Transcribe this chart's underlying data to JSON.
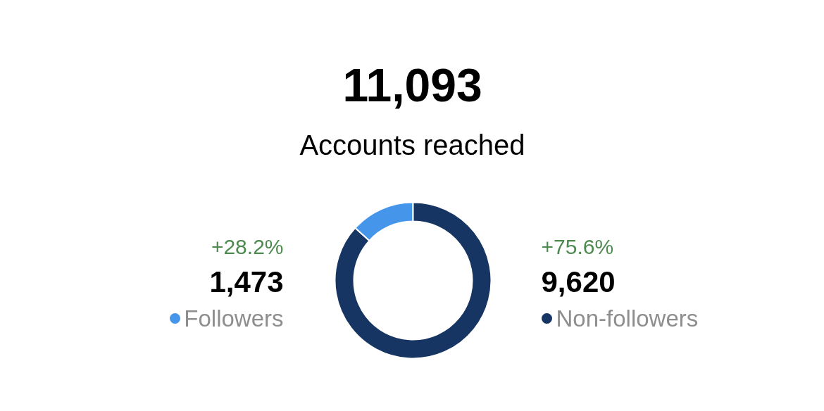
{
  "chart_data": {
    "type": "donut",
    "title": "11,093",
    "subtitle": "Accounts reached",
    "categories": [
      "Followers",
      "Non-followers"
    ],
    "values": [
      1473,
      9620
    ],
    "colors": [
      "#4596ea",
      "#163563"
    ],
    "value_labels": [
      "1,473",
      "9,620"
    ],
    "annotations": [
      "+28.2%",
      "+75.6%"
    ],
    "legend": "bottom"
  }
}
